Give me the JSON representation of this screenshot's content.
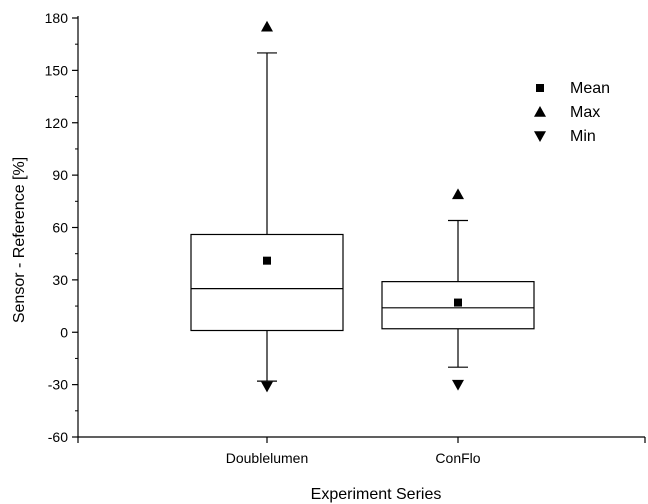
{
  "chart_data": {
    "type": "box",
    "xlabel": "Experiment Series",
    "ylabel": "Sensor - Reference [%]",
    "ylim": [
      -60,
      180
    ],
    "yticks": [
      -60,
      -30,
      0,
      30,
      60,
      90,
      120,
      150,
      180
    ],
    "categories": [
      "Doublelumen",
      "ConFlo"
    ],
    "boxes": [
      {
        "category": "Doublelumen",
        "q1": 1,
        "median": 25,
        "q3": 56,
        "whisker_low": -28,
        "whisker_high": 160,
        "mean": 41,
        "max": 175,
        "min": -31
      },
      {
        "category": "ConFlo",
        "q1": 2,
        "median": 14,
        "q3": 29,
        "whisker_low": -20,
        "whisker_high": 64,
        "mean": 17,
        "max": 79,
        "min": -30
      }
    ],
    "legend": {
      "position": "top-right",
      "items": [
        {
          "label": "Mean",
          "marker": "square"
        },
        {
          "label": "Max",
          "marker": "triangle-up"
        },
        {
          "label": "Min",
          "marker": "triangle-down"
        }
      ]
    },
    "grid": false
  }
}
